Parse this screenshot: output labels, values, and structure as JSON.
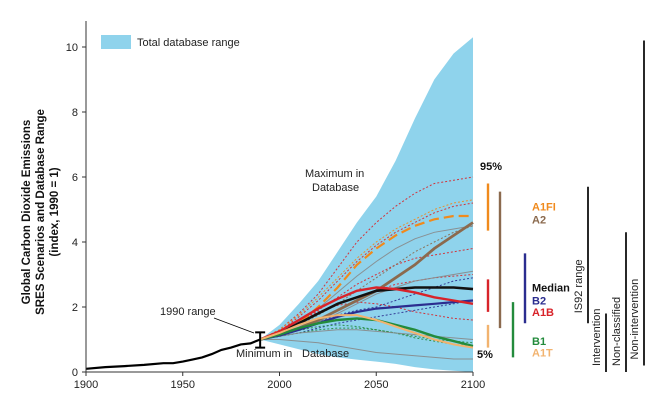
{
  "chart_data": {
    "type": "line",
    "ylabel_lines": [
      "Global Carbon Dioxide Emissions",
      "SRES Scenarios and Database Range",
      "(index, 1990 = 1)"
    ],
    "xlim": [
      1900,
      2100
    ],
    "ylim": [
      0,
      10.8
    ],
    "x_ticks": [
      1900,
      1950,
      2000,
      2050,
      2100
    ],
    "y_ticks": [
      0,
      2,
      4,
      6,
      8,
      10
    ],
    "legend": {
      "label": "Total database range",
      "color": "#8fd3ec",
      "placement": "top-left"
    },
    "historical": {
      "x": [
        1900,
        1910,
        1920,
        1930,
        1940,
        1945,
        1950,
        1955,
        1960,
        1965,
        1970,
        1975,
        1980,
        1985,
        1990
      ],
      "y": [
        0.1,
        0.15,
        0.18,
        0.22,
        0.27,
        0.27,
        0.32,
        0.38,
        0.45,
        0.55,
        0.68,
        0.75,
        0.85,
        0.88,
        1.0
      ]
    },
    "database_range": {
      "x": [
        1990,
        2000,
        2010,
        2020,
        2030,
        2040,
        2050,
        2060,
        2070,
        2080,
        2090,
        2100
      ],
      "max": [
        1.0,
        1.45,
        2.1,
        2.8,
        3.7,
        4.6,
        5.4,
        6.5,
        7.8,
        9.0,
        9.8,
        10.3
      ],
      "min": [
        1.0,
        0.85,
        0.7,
        0.55,
        0.45,
        0.38,
        0.32,
        0.25,
        0.15,
        0.08,
        0.04,
        0.0
      ]
    },
    "series_x": [
      1990,
      2000,
      2010,
      2020,
      2030,
      2040,
      2050,
      2060,
      2070,
      2080,
      2090,
      2100
    ],
    "series": [
      {
        "name": "A1FI",
        "color": "#f08a1c",
        "dash": "10,5",
        "width": 2.2,
        "values": [
          1.0,
          1.2,
          1.5,
          2.0,
          2.6,
          3.3,
          3.8,
          4.2,
          4.5,
          4.7,
          4.8,
          4.8
        ]
      },
      {
        "name": "A2",
        "color": "#8b6a4e",
        "dash": "",
        "width": 2.8,
        "values": [
          1.0,
          1.15,
          1.35,
          1.6,
          1.9,
          2.2,
          2.5,
          2.9,
          3.3,
          3.8,
          4.2,
          4.6
        ]
      },
      {
        "name": "Median",
        "color": "#111111",
        "dash": "",
        "width": 2.6,
        "values": [
          1.0,
          1.2,
          1.5,
          1.8,
          2.1,
          2.3,
          2.5,
          2.55,
          2.6,
          2.6,
          2.6,
          2.55
        ]
      },
      {
        "name": "B2",
        "color": "#2b2d8f",
        "dash": "",
        "width": 2.2,
        "values": [
          1.0,
          1.12,
          1.3,
          1.5,
          1.7,
          1.85,
          1.95,
          2.0,
          2.05,
          2.1,
          2.15,
          2.2
        ]
      },
      {
        "name": "A1B",
        "color": "#d8232a",
        "dash": "",
        "width": 2.4,
        "values": [
          1.0,
          1.25,
          1.6,
          1.95,
          2.25,
          2.5,
          2.6,
          2.55,
          2.45,
          2.3,
          2.2,
          2.1
        ]
      },
      {
        "name": "B1",
        "color": "#238b3c",
        "dash": "",
        "width": 2.4,
        "values": [
          1.0,
          1.15,
          1.35,
          1.5,
          1.6,
          1.65,
          1.6,
          1.45,
          1.3,
          1.1,
          0.95,
          0.8
        ]
      },
      {
        "name": "A1T",
        "color": "#f2b36f",
        "dash": "",
        "width": 2.0,
        "values": [
          1.0,
          1.2,
          1.45,
          1.65,
          1.75,
          1.75,
          1.6,
          1.4,
          1.2,
          1.0,
          0.85,
          0.75
        ]
      }
    ],
    "background_scenarios": [
      {
        "color": "#d8232a",
        "values": [
          1.0,
          1.3,
          1.8,
          2.4,
          3.2,
          4.0,
          4.6,
          5.1,
          5.5,
          5.8,
          5.9,
          6.0
        ]
      },
      {
        "color": "#d8232a",
        "values": [
          1.0,
          1.25,
          1.7,
          2.2,
          2.8,
          3.4,
          3.9,
          4.3,
          4.6,
          4.9,
          5.1,
          5.2
        ]
      },
      {
        "color": "#d8232a",
        "values": [
          1.0,
          1.22,
          1.55,
          1.9,
          2.3,
          2.7,
          3.0,
          3.3,
          3.5,
          3.6,
          3.7,
          3.8
        ]
      },
      {
        "color": "#f08a1c",
        "values": [
          1.0,
          1.3,
          1.75,
          2.3,
          2.9,
          3.5,
          4.0,
          4.4,
          4.7,
          5.0,
          5.2,
          5.3
        ]
      },
      {
        "color": "#8b6a4e",
        "values": [
          1.0,
          1.18,
          1.45,
          1.75,
          2.1,
          2.5,
          2.9,
          3.3,
          3.7,
          4.0,
          4.3,
          4.5
        ]
      },
      {
        "color": "#d8232a",
        "values": [
          1.0,
          1.2,
          1.5,
          1.8,
          2.1,
          2.3,
          2.5,
          2.7,
          2.8,
          2.9,
          2.95,
          3.0
        ]
      },
      {
        "color": "#2b2d8f",
        "values": [
          1.0,
          1.15,
          1.35,
          1.55,
          1.75,
          1.9,
          2.0,
          2.2,
          2.4,
          2.6,
          2.8,
          2.9
        ]
      },
      {
        "color": "#2b2d8f",
        "values": [
          1.0,
          1.1,
          1.2,
          1.35,
          1.5,
          1.6,
          1.7,
          1.8,
          1.9,
          2.0,
          2.1,
          2.2
        ]
      },
      {
        "color": "#238b3c",
        "values": [
          1.0,
          1.1,
          1.2,
          1.3,
          1.35,
          1.35,
          1.3,
          1.2,
          1.1,
          1.0,
          0.95,
          0.9
        ]
      },
      {
        "color": "#238b3c",
        "values": [
          1.0,
          1.12,
          1.28,
          1.4,
          1.45,
          1.4,
          1.3,
          1.2,
          1.05,
          0.95,
          0.85,
          0.8
        ]
      },
      {
        "color": "#d8232a",
        "values": [
          1.0,
          1.22,
          1.55,
          1.85,
          2.05,
          2.15,
          2.1,
          2.0,
          1.85,
          1.75,
          1.65,
          1.6
        ]
      },
      {
        "color": "#888888",
        "values": [
          1.0,
          1.1,
          1.2,
          1.25,
          1.3,
          1.3,
          1.25,
          1.2,
          1.15,
          1.1,
          1.05,
          1.0
        ]
      },
      {
        "color": "#888888",
        "values": [
          1.0,
          1.0,
          0.95,
          0.9,
          0.8,
          0.7,
          0.6,
          0.55,
          0.5,
          0.45,
          0.4,
          0.4
        ]
      },
      {
        "color": "#888888",
        "values": [
          1.0,
          1.15,
          1.35,
          1.55,
          1.8,
          2.1,
          2.4,
          2.6,
          2.8,
          2.9,
          3.0,
          3.1
        ]
      },
      {
        "color": "#888888",
        "values": [
          1.0,
          1.2,
          1.55,
          1.95,
          2.45,
          2.95,
          3.4,
          3.8,
          4.1,
          4.3,
          4.4,
          4.5
        ]
      }
    ],
    "error_bar_1990": {
      "x": 1990,
      "low": 0.75,
      "high": 1.22
    },
    "annotations": {
      "range_1990": "1990 range",
      "minimum": "Minimum in",
      "database_min": "Database",
      "maximum_line1": "Maximum in",
      "maximum_line2": "Database"
    },
    "percentile_labels": {
      "p95": "95%",
      "p5": "5%"
    },
    "bars_2100": [
      {
        "color": "#f08a1c",
        "low": 4.35,
        "high": 5.8
      },
      {
        "color": "#d8232a",
        "low": 1.85,
        "high": 2.85
      },
      {
        "color": "#f2b36f",
        "low": 0.75,
        "high": 1.45
      },
      {
        "color": "#8b6a4e",
        "low": 1.35,
        "high": 5.55
      },
      {
        "color": "#2b2d8f",
        "low": 1.5,
        "high": 3.65
      },
      {
        "color": "#238b3c",
        "low": 0.45,
        "high": 2.15
      }
    ],
    "bar_labels": [
      {
        "text": "A1FI",
        "color": "#f08a1c",
        "y": 5.1
      },
      {
        "text": "A2",
        "color": "#8b6a4e",
        "y": 4.7
      },
      {
        "text": "Median",
        "color": "#111111",
        "y": 2.6
      },
      {
        "text": "B2",
        "color": "#2b2d8f",
        "y": 2.2
      },
      {
        "text": "A1B",
        "color": "#d8232a",
        "y": 1.85
      },
      {
        "text": "B1",
        "color": "#238b3c",
        "y": 0.95
      },
      {
        "text": "A1T",
        "color": "#f2b36f",
        "y": 0.6
      }
    ],
    "range_bars": [
      {
        "label": "IS92 range",
        "low": 1.5,
        "high": 5.7
      },
      {
        "label": "Intervention",
        "low": 0.0,
        "high": 1.8
      },
      {
        "label": "Non-classified",
        "low": 0.0,
        "high": 4.3
      },
      {
        "label": "Non-intervention",
        "low": 0.2,
        "high": 10.2
      }
    ]
  }
}
